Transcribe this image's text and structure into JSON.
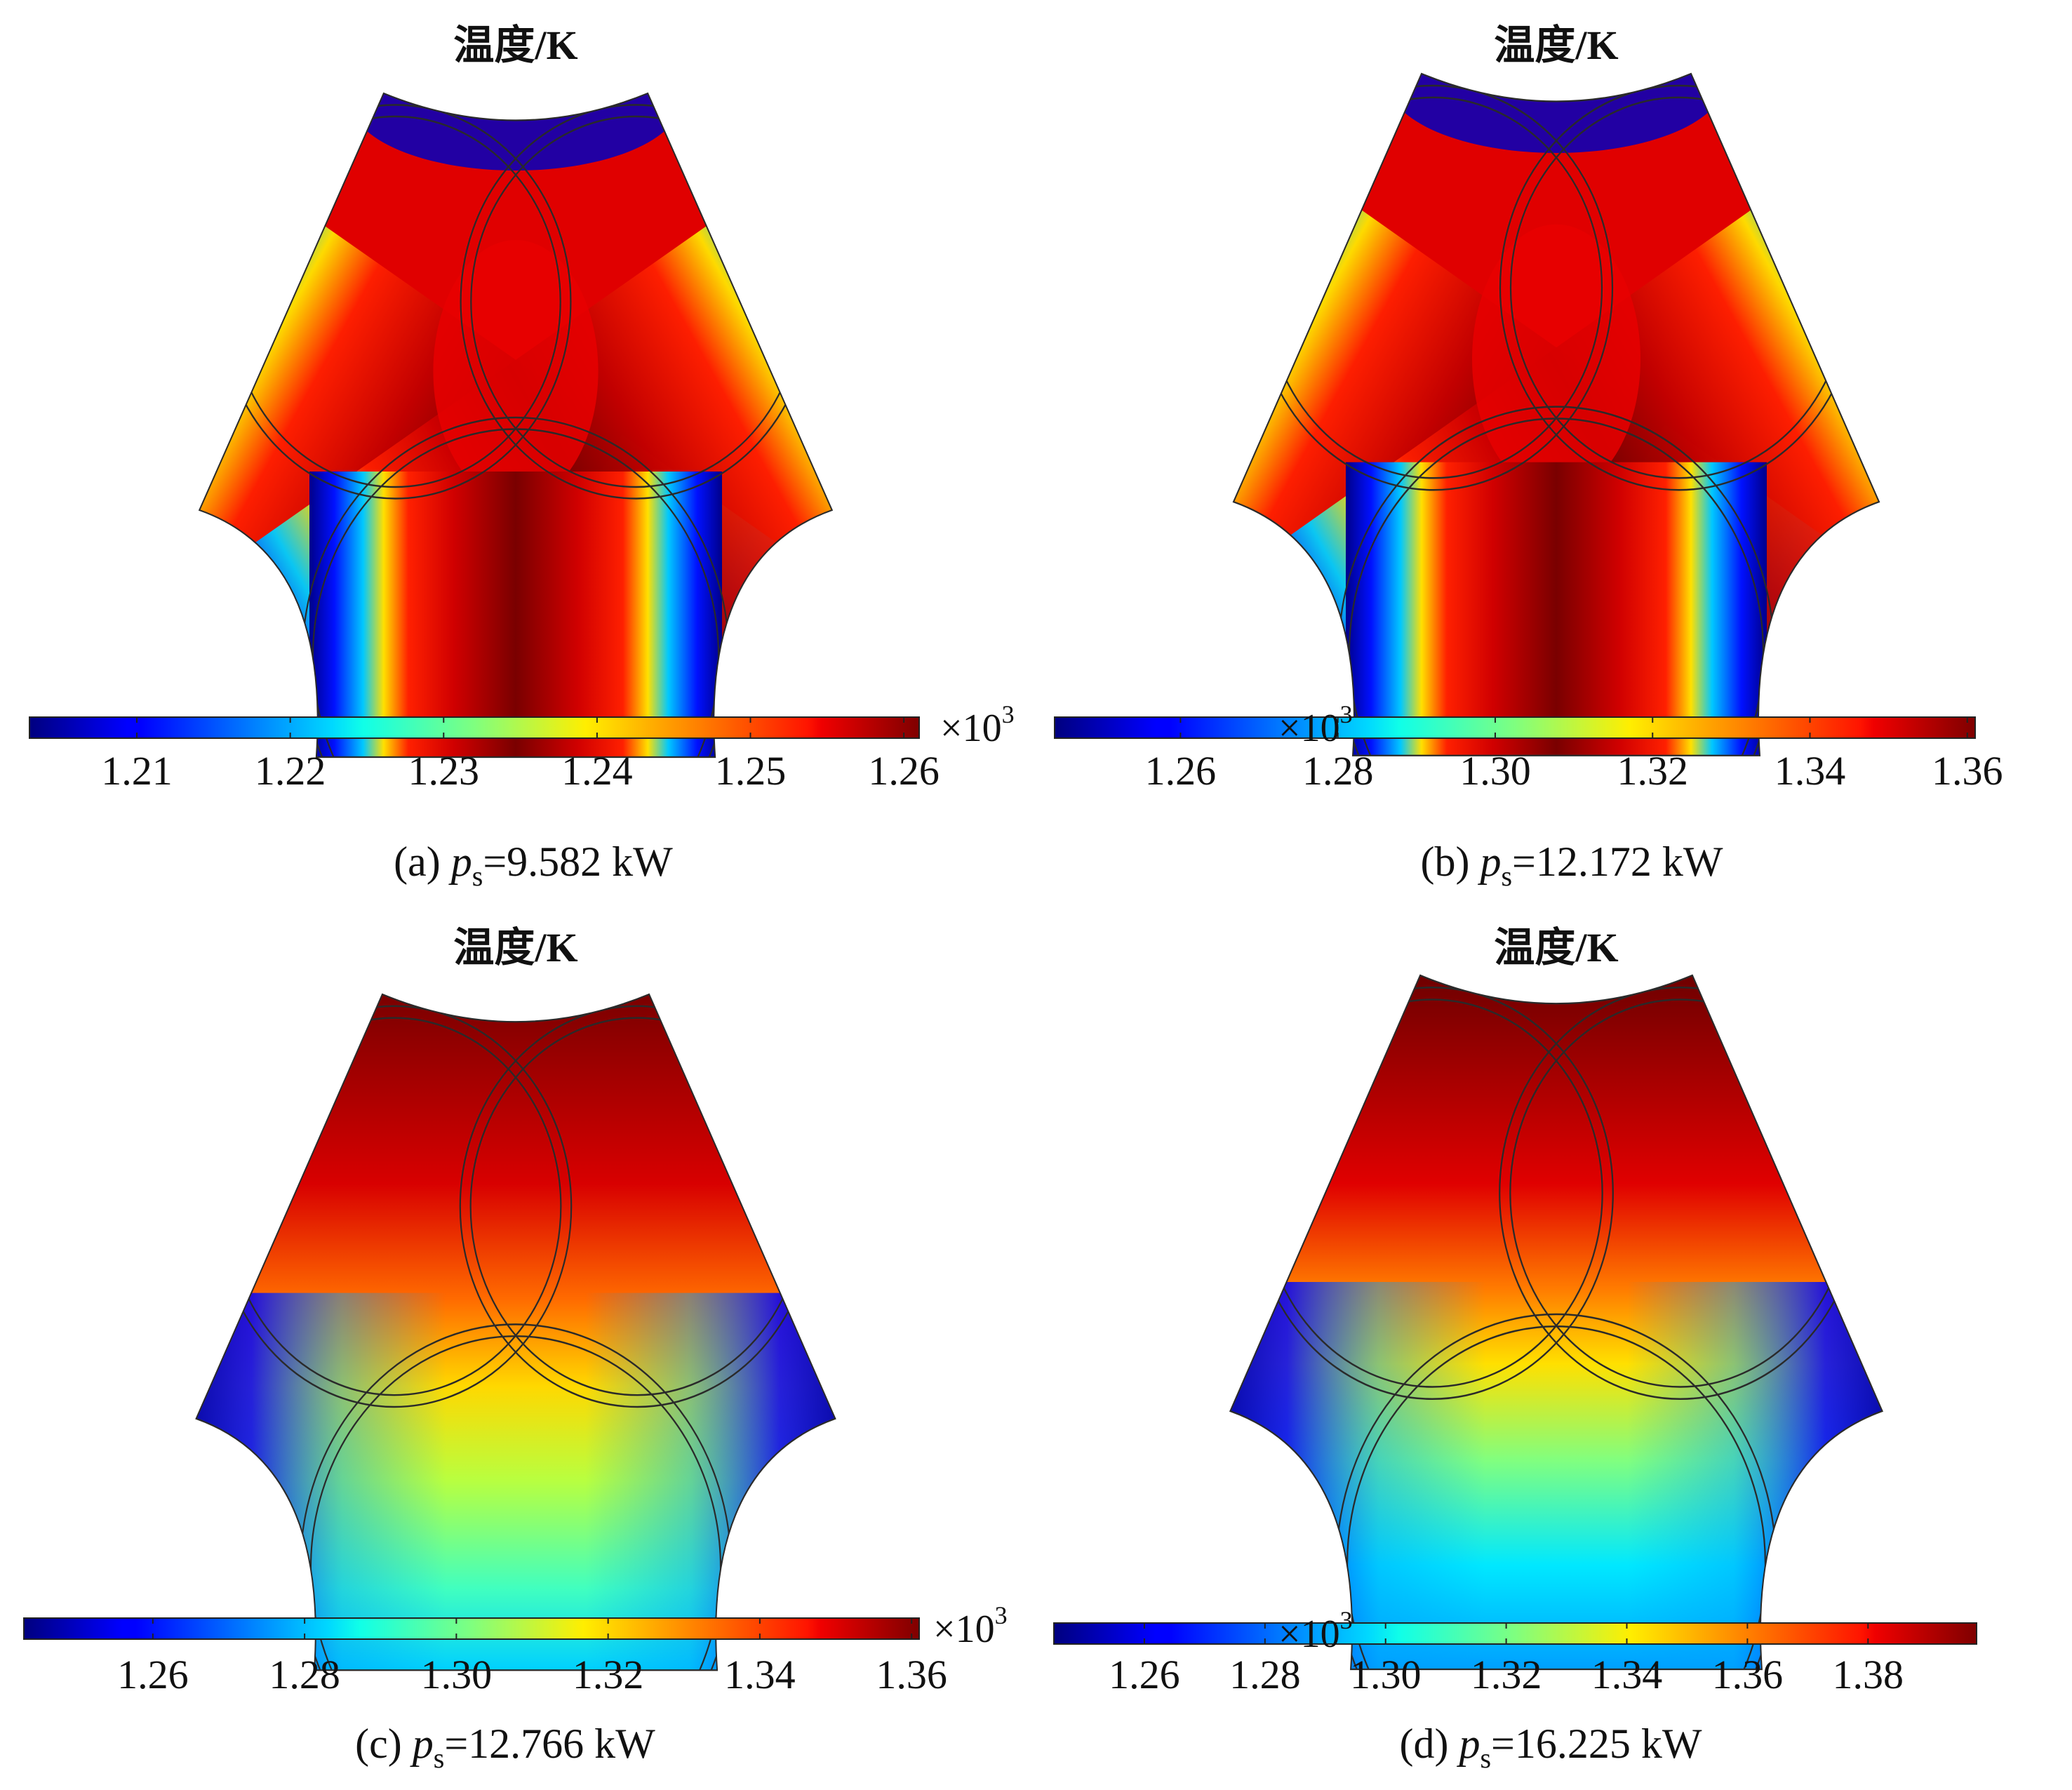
{
  "figure": {
    "panels": [
      {
        "id": "a",
        "title": "温度/K",
        "caption_prefix": "(a) ",
        "caption_var": "p",
        "caption_sub": "s",
        "caption_value": "=9.582 kW",
        "colorbar": {
          "multiplier": "×10",
          "multiplier_exp": "3"
        }
      },
      {
        "id": "b",
        "title": "温度/K",
        "caption_prefix": "(b) ",
        "caption_var": "p",
        "caption_sub": "s",
        "caption_value": "=12.172 kW",
        "colorbar": {
          "multiplier": "×10",
          "multiplier_exp": "3"
        }
      },
      {
        "id": "c",
        "title": "温度/K",
        "caption_prefix": "(c) ",
        "caption_var": "p",
        "caption_sub": "s",
        "caption_value": "=12.766 kW",
        "colorbar": {
          "multiplier": "×10",
          "multiplier_exp": "3"
        }
      },
      {
        "id": "d",
        "title": "温度/K",
        "caption_prefix": "(d) ",
        "caption_var": "p",
        "caption_sub": "s",
        "caption_value": "=16.225 kW",
        "colorbar": {
          "multiplier": "×10",
          "multiplier_exp": "3"
        }
      }
    ]
  },
  "chart_data": [
    {
      "type": "heatmap",
      "title": "温度/K",
      "colormap": "jet",
      "pattern": "three-lobe hot bands, cold at outer concave edges",
      "range": [
        1.203,
        1.261
      ],
      "ticks": [
        1.21,
        1.22,
        1.23,
        1.24,
        1.25,
        1.26
      ],
      "tick_labels": [
        "1.21",
        "1.22",
        "1.23",
        "1.24",
        "1.25",
        "1.26"
      ],
      "unit_multiplier": "×10^3"
    },
    {
      "type": "heatmap",
      "title": "温度/K",
      "colormap": "jet",
      "pattern": "three-lobe hot bands, cold at outer concave edges",
      "range": [
        1.244,
        1.361
      ],
      "ticks": [
        1.26,
        1.28,
        1.3,
        1.32,
        1.34,
        1.36
      ],
      "tick_labels": [
        "1.26",
        "1.28",
        "1.30",
        "1.32",
        "1.34",
        "1.36"
      ],
      "unit_multiplier": "×10^3"
    },
    {
      "type": "heatmap",
      "title": "温度/K",
      "colormap": "jet",
      "pattern": "hot at top, cooler toward bottom lobe",
      "range": [
        1.243,
        1.361
      ],
      "ticks": [
        1.26,
        1.28,
        1.3,
        1.32,
        1.34,
        1.36
      ],
      "tick_labels": [
        "1.26",
        "1.28",
        "1.30",
        "1.32",
        "1.34",
        "1.36"
      ],
      "unit_multiplier": "×10^3"
    },
    {
      "type": "heatmap",
      "title": "温度/K",
      "colormap": "jet",
      "pattern": "hot at top, cooler toward bottom lobe",
      "range": [
        1.245,
        1.398
      ],
      "ticks": [
        1.26,
        1.28,
        1.3,
        1.32,
        1.34,
        1.36,
        1.38
      ],
      "tick_labels": [
        "1.26",
        "1.28",
        "1.30",
        "1.32",
        "1.34",
        "1.36",
        "1.38"
      ],
      "unit_multiplier": "×10^3"
    }
  ],
  "colors": {
    "jet_low": "#00007f",
    "jet_mid": "#7fff7f",
    "jet_high": "#7f0000",
    "outline": "#2a2a2a"
  }
}
